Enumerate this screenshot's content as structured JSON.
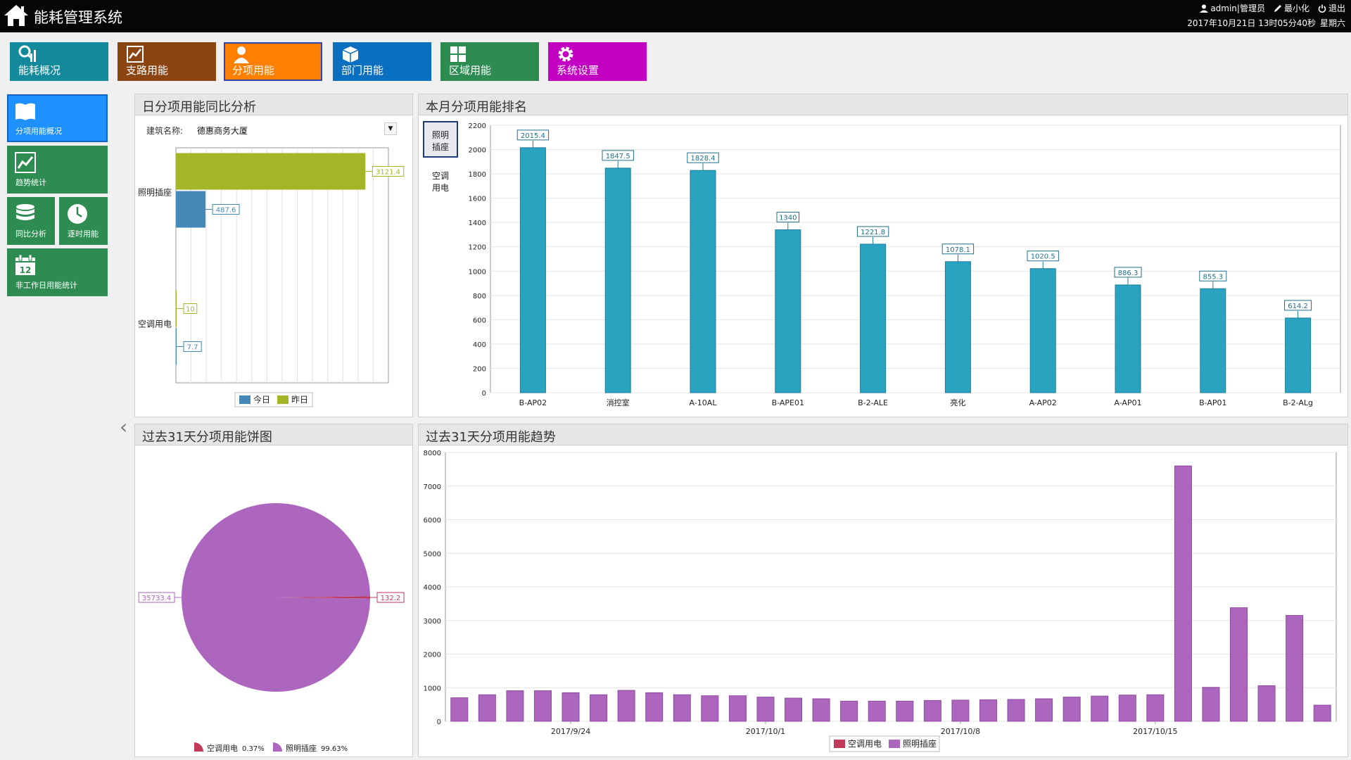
{
  "app": {
    "title": "能耗管理系统"
  },
  "topbar": {
    "user": "admin|管理员",
    "minimize": "最小化",
    "logout": "退出",
    "datetime": "2017年10月21日 13时05分40秒",
    "weekday": "星期六"
  },
  "nav": [
    {
      "label": "能耗概况",
      "icon": "energy-overview-icon",
      "color": "#138a9c"
    },
    {
      "label": "支路用能",
      "icon": "trend-chart-icon",
      "color": "#8b4513"
    },
    {
      "label": "分项用能",
      "icon": "person-icon",
      "color": "#ff7f00"
    },
    {
      "label": "部门用能",
      "icon": "cube-icon",
      "color": "#0a6fbf"
    },
    {
      "label": "区域用能",
      "icon": "grid-icon",
      "color": "#2e8c52"
    },
    {
      "label": "系统设置",
      "icon": "gear-icon",
      "color": "#c200c2"
    }
  ],
  "sidebar": [
    {
      "label": "分项用能概况",
      "icon": "book-icon"
    },
    {
      "label": "趋势统计",
      "icon": "trend-chart-icon"
    },
    {
      "label": "同比分析",
      "icon": "database-icon"
    },
    {
      "label": "逐时用能",
      "icon": "clock-icon"
    },
    {
      "label": "非工作日用能统计",
      "icon": "calendar-icon"
    }
  ],
  "calendar_day": "12",
  "panels": {
    "daily": "日分项用能同比分析",
    "ranking": "本月分项用能排名",
    "pie": "过去31天分项用能饼图",
    "trend": "过去31天分项用能趋势"
  },
  "building": {
    "label": "建筑名称:",
    "value": "德惠商务大厦"
  },
  "ranking_tabs": [
    {
      "line1": "照明",
      "line2": "插座"
    },
    {
      "line1": "空调",
      "line2": "用电"
    }
  ],
  "colors": {
    "today": "#4589b9",
    "yesterday": "#a4b627",
    "rank_bar": "#2aa3c1",
    "pie_ac": "#c23a5a",
    "pie_light": "#ad66bd",
    "trend_bar": "#ad66bd"
  },
  "chart_data": [
    {
      "type": "bar",
      "orientation": "horizontal",
      "categories": [
        "照明插座",
        "空调用电"
      ],
      "series": [
        {
          "name": "今日",
          "values": [
            487.6,
            7.7
          ]
        },
        {
          "name": "昨日",
          "values": [
            3121.4,
            10
          ]
        }
      ],
      "xlim": [
        0,
        3500
      ],
      "legend": "bottom",
      "grid": true
    },
    {
      "type": "bar",
      "categories": [
        "B-AP02",
        "消控室",
        "A-10AL",
        "B-APE01",
        "B-2-ALE",
        "亮化",
        "A-AP02",
        "A-AP01",
        "B-AP01",
        "B-2-ALg"
      ],
      "values": [
        2015.4,
        1847.5,
        1828.4,
        1340,
        1221.8,
        1078.1,
        1020.5,
        886.3,
        855.3,
        614.2
      ],
      "ylim": [
        0,
        2200
      ],
      "yticks": [
        0,
        200,
        400,
        600,
        800,
        1000,
        1200,
        1400,
        1600,
        1800,
        2000,
        2200
      ],
      "grid": true
    },
    {
      "type": "pie",
      "slices": [
        {
          "name": "空调用电",
          "value": 132.2,
          "percent": "0.37%"
        },
        {
          "name": "照明插座",
          "value": 35733.4,
          "percent": "99.63%"
        }
      ],
      "legend": "bottom"
    },
    {
      "type": "bar",
      "series_names": [
        "空调用电",
        "照明插座"
      ],
      "start_date": "2017/9/20",
      "values": [
        700,
        790,
        910,
        910,
        850,
        790,
        920,
        850,
        790,
        760,
        760,
        720,
        690,
        670,
        600,
        600,
        600,
        620,
        630,
        640,
        650,
        670,
        720,
        750,
        780,
        790,
        7600,
        1010,
        3380,
        1060,
        3150,
        480
      ],
      "xticks": [
        "2017/9/24",
        "2017/10/1",
        "2017/10/8",
        "2017/10/15"
      ],
      "ylim": [
        0,
        8000
      ],
      "yticks": [
        0,
        1000,
        2000,
        3000,
        4000,
        5000,
        6000,
        7000,
        8000
      ],
      "legend": "bottom",
      "grid": true
    }
  ]
}
